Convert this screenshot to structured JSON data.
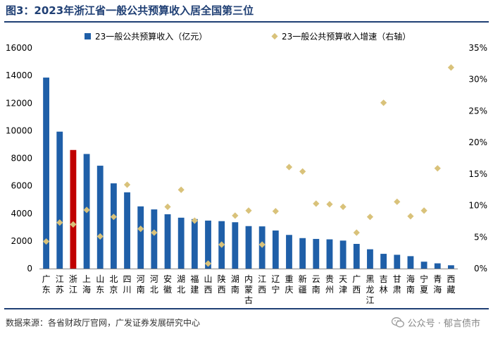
{
  "title": "图3：2023年浙江省一般公共预算收入居全国第三位",
  "source": "数据来源：各省财政厅官网，广发证券发展研究中心",
  "watermark": "公众号 · 郁言债市",
  "colors": {
    "bar": "#1f5fa8",
    "highlight": "#c00000",
    "marker": "#d9c27a",
    "rule": "#1f3f74"
  },
  "chart_data": {
    "type": "bar",
    "categories": [
      "广东",
      "江苏",
      "浙江",
      "上海",
      "山东",
      "北京",
      "四川",
      "河南",
      "河北",
      "安徽",
      "湖北",
      "福建",
      "山西",
      "陕西",
      "湖南",
      "内蒙古",
      "江西",
      "辽宁",
      "重庆",
      "新疆",
      "云南",
      "贵州",
      "天津",
      "广西",
      "黑龙江",
      "吉林",
      "甘肃",
      "海南",
      "宁夏",
      "青海",
      "西藏"
    ],
    "highlight_category": "浙江",
    "series": [
      {
        "name": "23一般公共预算收入（亿元）",
        "type": "bar",
        "axis": "left",
        "values": [
          13850,
          9930,
          8600,
          8310,
          7460,
          6180,
          5530,
          4510,
          4290,
          3940,
          3690,
          3590,
          3480,
          3440,
          3360,
          3080,
          3060,
          2760,
          2440,
          2210,
          2150,
          2120,
          2030,
          1790,
          1400,
          1070,
          1000,
          900,
          500,
          380,
          240
        ]
      },
      {
        "name": "23一般公共预算收入增速（右轴）",
        "type": "scatter",
        "axis": "right",
        "values": [
          4.3,
          7.3,
          7.0,
          9.3,
          5.1,
          8.2,
          13.3,
          6.3,
          5.7,
          9.8,
          12.5,
          7.6,
          0.8,
          3.8,
          8.4,
          9.2,
          3.8,
          9.1,
          16.1,
          15.4,
          10.3,
          10.2,
          9.8,
          5.7,
          8.2,
          26.3,
          10.6,
          8.3,
          9.2,
          15.9,
          31.9
        ]
      }
    ],
    "ylim_left": [
      0,
      16000
    ],
    "yticks_left": [
      "0",
      "2000",
      "4000",
      "6000",
      "8000",
      "10000",
      "12000",
      "14000",
      "16000"
    ],
    "ylim_right": [
      0,
      35
    ],
    "yticks_right": [
      "0%",
      "5%",
      "10%",
      "15%",
      "20%",
      "25%",
      "30%",
      "35%"
    ],
    "legend_position": "top"
  }
}
